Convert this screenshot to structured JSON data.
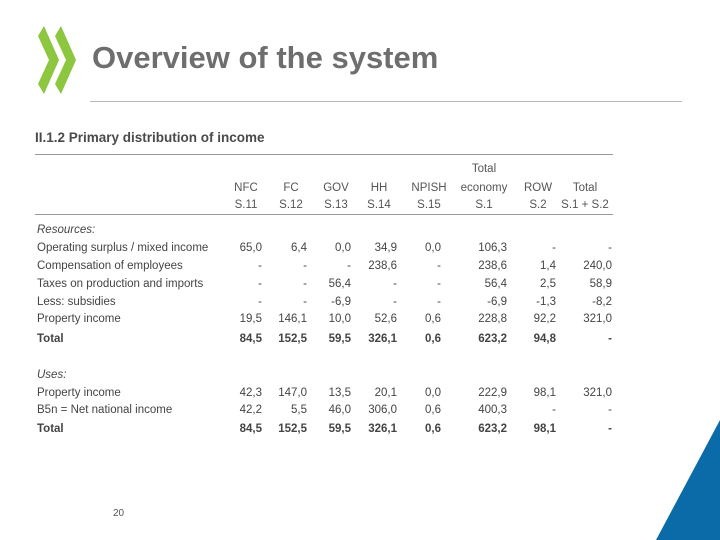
{
  "slide": {
    "title": "Overview of the system",
    "subtitle": "II.1.2 Primary distribution of income",
    "page_number": "20"
  },
  "logo": {
    "icon": "oecd-chevrons-logo",
    "color": "#8dc63f"
  },
  "corner": {
    "color": "#0b6aa8"
  },
  "table": {
    "total_economy_label": "Total",
    "headers": [
      [
        "NFC",
        "S.11"
      ],
      [
        "FC",
        "S.12"
      ],
      [
        "GOV",
        "S.13"
      ],
      [
        "HH",
        "S.14"
      ],
      [
        "NPISH",
        "S.15"
      ],
      [
        "economy",
        "S.1"
      ],
      [
        "ROW",
        "S.2"
      ],
      [
        "Total",
        "S.1 + S.2"
      ]
    ],
    "resources_label": "Resources:",
    "resources_rows": [
      {
        "label": "Operating surplus / mixed income",
        "values": [
          "65,0",
          "6,4",
          "0,0",
          "34,9",
          "0,0",
          "106,3",
          "-",
          "-"
        ]
      },
      {
        "label": "Compensation of employees",
        "values": [
          "-",
          "-",
          "-",
          "238,6",
          "-",
          "238,6",
          "1,4",
          "240,0"
        ]
      },
      {
        "label": "Taxes on production and imports",
        "values": [
          "-",
          "-",
          "56,4",
          "-",
          "-",
          "56,4",
          "2,5",
          "58,9"
        ]
      },
      {
        "label": "Less: subsidies",
        "values": [
          "-",
          "-",
          "-6,9",
          "-",
          "-",
          "-6,9",
          "-1,3",
          "-8,2"
        ]
      },
      {
        "label": "Property income",
        "values": [
          "19,5",
          "146,1",
          "10,0",
          "52,6",
          "0,6",
          "228,8",
          "92,2",
          "321,0"
        ]
      }
    ],
    "resources_total": {
      "label": "Total",
      "values": [
        "84,5",
        "152,5",
        "59,5",
        "326,1",
        "0,6",
        "623,2",
        "94,8",
        "-"
      ]
    },
    "uses_label": "Uses:",
    "uses_rows": [
      {
        "label": "Property income",
        "values": [
          "42,3",
          "147,0",
          "13,5",
          "20,1",
          "0,0",
          "222,9",
          "98,1",
          "321,0"
        ]
      },
      {
        "label": "B5n = Net national income",
        "values": [
          "42,2",
          "5,5",
          "46,0",
          "306,0",
          "0,6",
          "400,3",
          "-",
          "-"
        ]
      }
    ],
    "uses_total": {
      "label": "Total",
      "values": [
        "84,5",
        "152,5",
        "59,5",
        "326,1",
        "0,6",
        "623,2",
        "98,1",
        "-"
      ]
    }
  }
}
